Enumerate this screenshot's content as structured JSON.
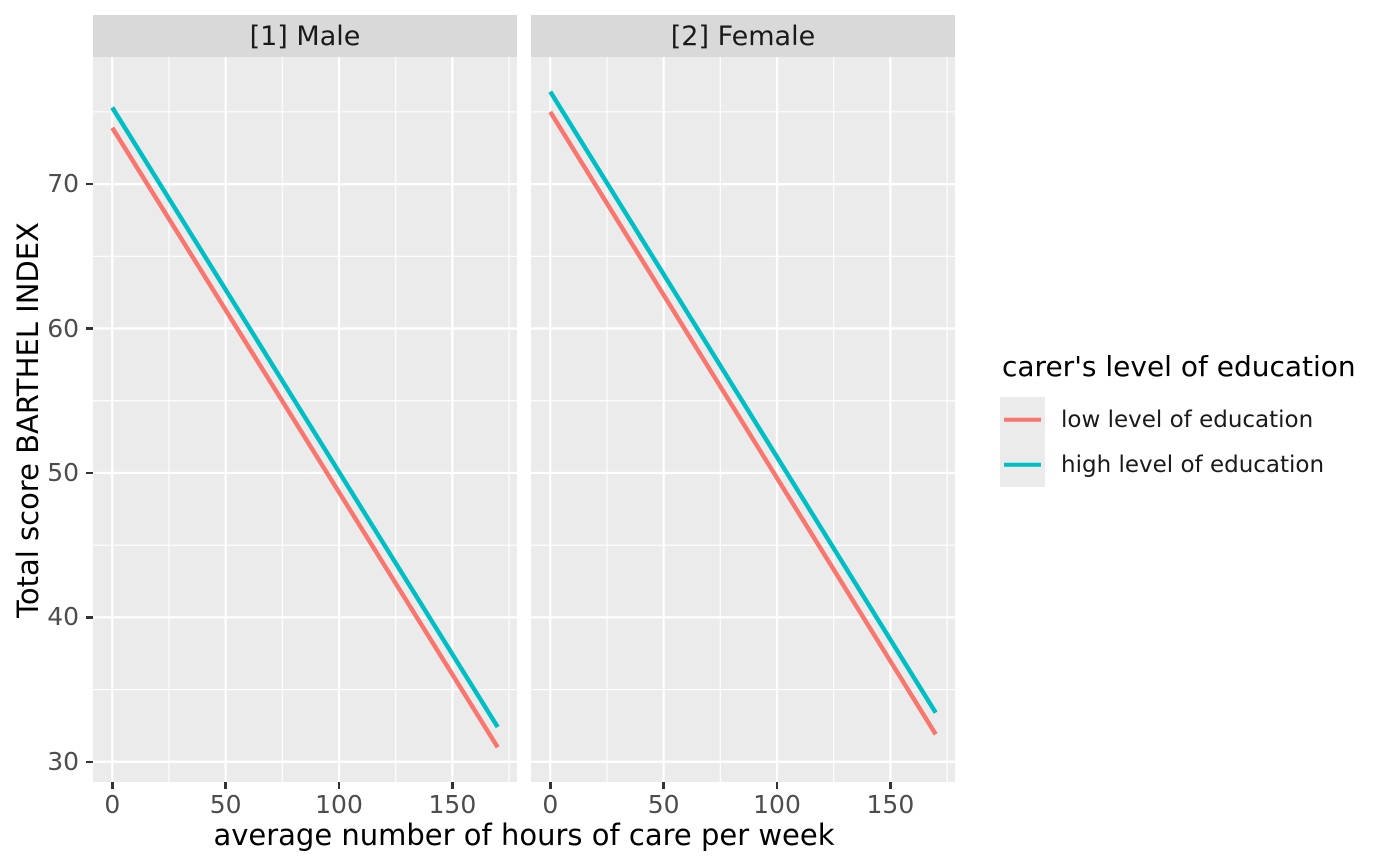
{
  "theme": {
    "panel_bg": "#EBEBEB",
    "strip_bg": "#D9D9D9",
    "grid": "#FFFFFF",
    "tick_text": "#4D4D4D",
    "tick_mark": "#333333",
    "title_text": "#000000",
    "strip_text": "#1A1A1A",
    "fig_bg": "#FFFFFF"
  },
  "chart_data": {
    "type": "line",
    "xlabel": "average number of hours of care per week",
    "ylabel": "Total score BARTHEL INDEX",
    "xlim": [
      -8.5,
      178.5
    ],
    "ylim": [
      28.6,
      78.8
    ],
    "x_ticks": [
      0,
      50,
      100,
      150
    ],
    "x_minor_ticks": [
      25,
      75,
      125,
      175
    ],
    "y_ticks": [
      30,
      40,
      50,
      60,
      70
    ],
    "y_minor_ticks": [
      35,
      45,
      55,
      65,
      75
    ],
    "grid": "on",
    "legend_position": "right",
    "facets": [
      {
        "label": "[1] Male",
        "series": [
          {
            "name": "low level of education",
            "color": "#F8766D",
            "points": [
              [
                0,
                73.9
              ],
              [
                170,
                31.0
              ]
            ]
          },
          {
            "name": "high level of education",
            "color": "#00BFC4",
            "points": [
              [
                0,
                75.3
              ],
              [
                170,
                32.4
              ]
            ]
          }
        ]
      },
      {
        "label": "[2] Female",
        "series": [
          {
            "name": "low level of education",
            "color": "#F8766D",
            "points": [
              [
                0,
                75.0
              ],
              [
                170,
                31.9
              ]
            ]
          },
          {
            "name": "high level of education",
            "color": "#00BFC4",
            "points": [
              [
                0,
                76.4
              ],
              [
                170,
                33.4
              ]
            ]
          }
        ]
      }
    ],
    "legend": {
      "title": "carer's level of education",
      "entries": [
        {
          "label": "low level of education",
          "color": "#F8766D"
        },
        {
          "label": "high level of education",
          "color": "#00BFC4"
        }
      ]
    }
  }
}
